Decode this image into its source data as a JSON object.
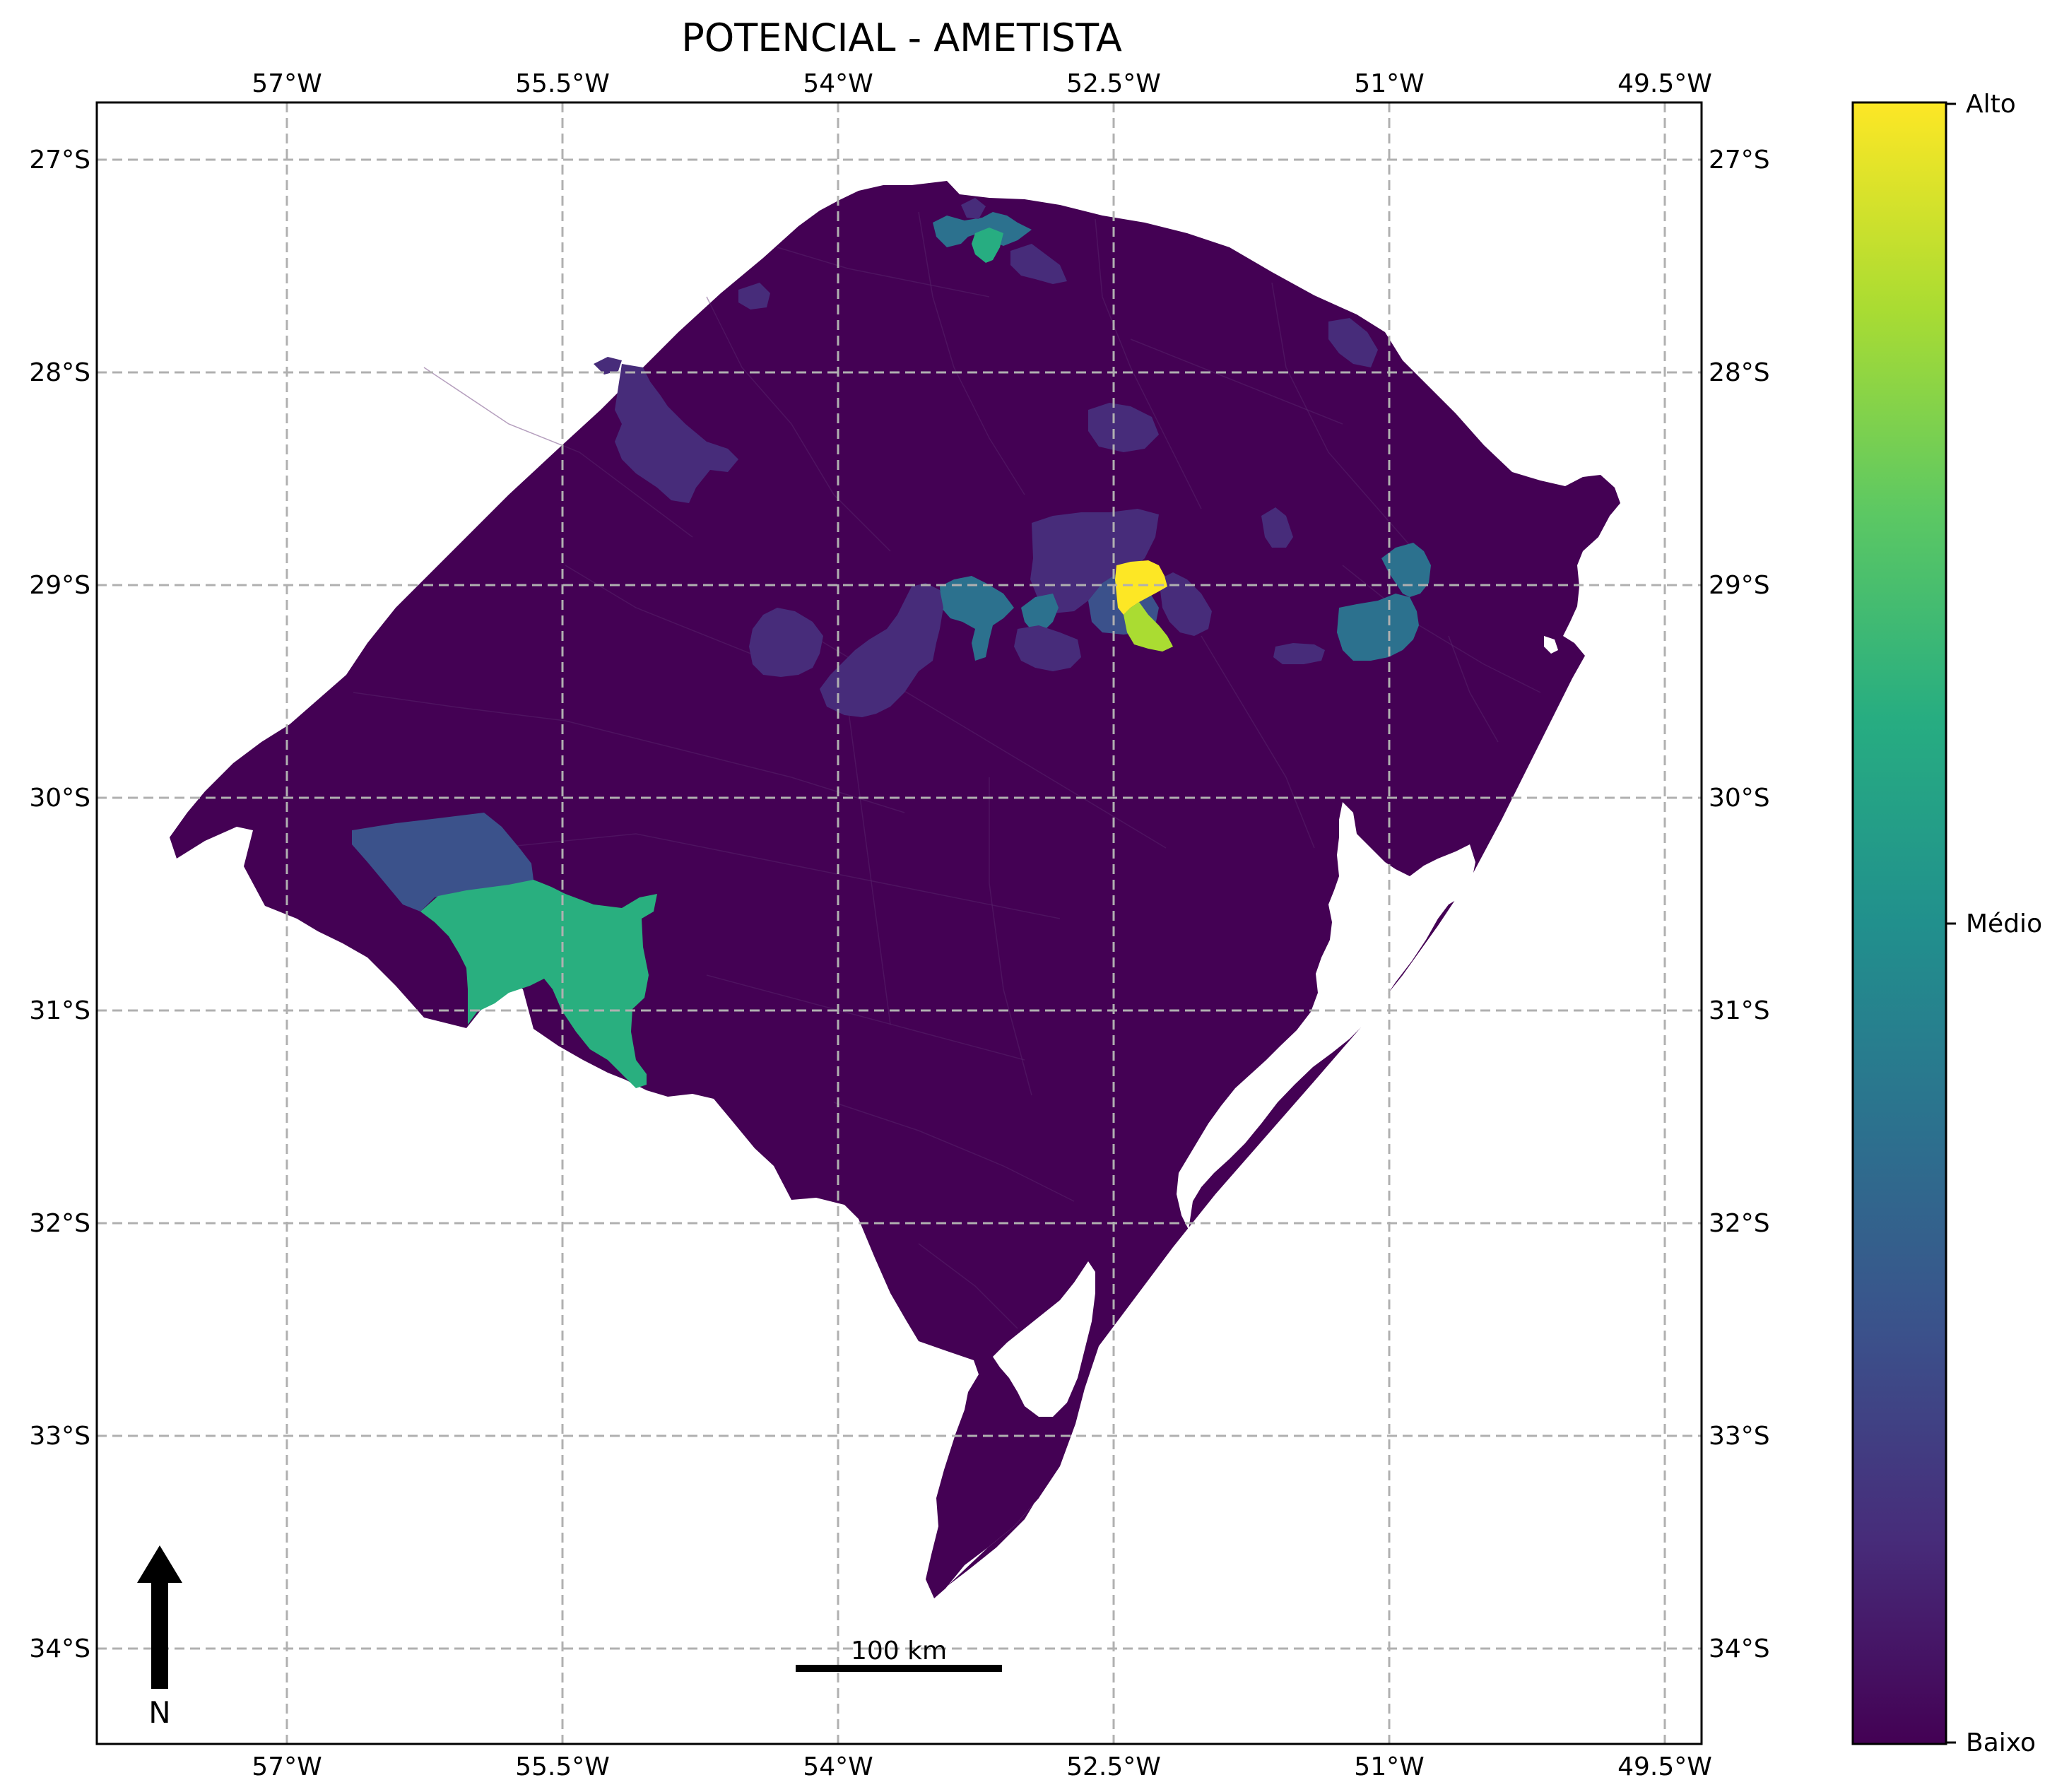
{
  "title": "POTENCIAL - AMETISTA",
  "axes": {
    "x_ticks": [
      "57°W",
      "55.5°W",
      "54°W",
      "52.5°W",
      "51°W",
      "49.5°W"
    ],
    "y_ticks": [
      "27°S",
      "28°S",
      "29°S",
      "30°S",
      "31°S",
      "32°S",
      "33°S",
      "34°S"
    ],
    "x_range": [
      -58.05,
      -49.25
    ],
    "y_range": [
      -34.45,
      -26.73
    ],
    "grid": true
  },
  "colorbar": {
    "top_label": "Alto",
    "middle_label": "Médio",
    "bottom_label": "Baixo",
    "colormap": "viridis",
    "colors": [
      "#440154",
      "#472c7a",
      "#3b518b",
      "#2c718e",
      "#21908d",
      "#27ad81",
      "#5cc863",
      "#aadc32",
      "#fde725"
    ]
  },
  "scale_bar": {
    "label": "100 km"
  },
  "north_arrow": {
    "label": "N"
  },
  "colors": {
    "land_base": "#440154",
    "water": "#ffffff",
    "grid": "#b0b0b0"
  }
}
